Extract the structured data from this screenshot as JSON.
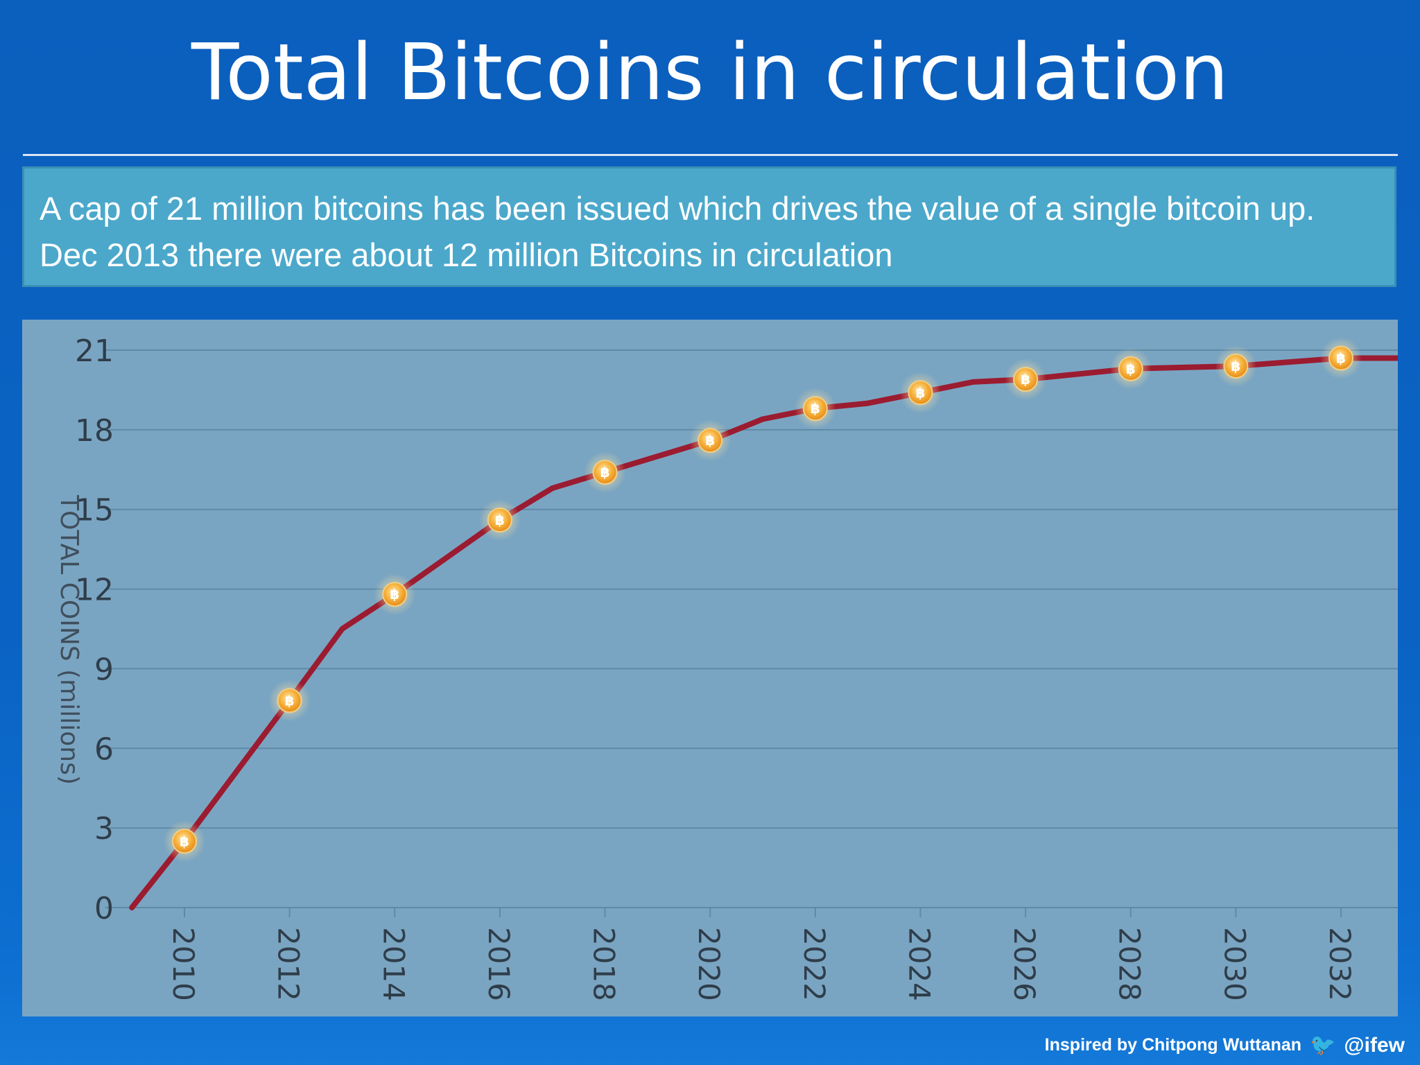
{
  "slide": {
    "title": "Total Bitcoins in circulation",
    "description": "A cap of 21 million bitcoins has been issued which drives the value of a single bitcoin up. Dec 2013 there were about 12 million Bitcoins in circulation"
  },
  "credit": {
    "text": "Inspired by Chitpong Wuttanan",
    "handle": "@ifew",
    "icon": "twitter-bird-icon"
  },
  "chart_data": {
    "type": "line",
    "title": "",
    "xlabel": "",
    "ylabel": "TOTAL COINS (millions)",
    "ylim": [
      0,
      21
    ],
    "xlim": [
      2009,
      2033
    ],
    "yticks": [
      "0",
      "3",
      "6",
      "9",
      "12",
      "15",
      "18",
      "21"
    ],
    "xticks": [
      "2010",
      "2012",
      "2014",
      "2016",
      "2018",
      "2020",
      "2022",
      "2024",
      "2026",
      "2028",
      "2030",
      "2032"
    ],
    "grid": true,
    "marker": "bitcoin-coin-icon",
    "line_color": "#9b1b30",
    "marker_color": "#f7a531",
    "series": [
      {
        "values": [
          {
            "x": 2009,
            "y": 0
          },
          {
            "x": 2010,
            "y": 2.5
          },
          {
            "x": 2012,
            "y": 7.8
          },
          {
            "x": 2013,
            "y": 10.5
          },
          {
            "x": 2014,
            "y": 11.8
          },
          {
            "x": 2016,
            "y": 14.6
          },
          {
            "x": 2017,
            "y": 15.8
          },
          {
            "x": 2018,
            "y": 16.4
          },
          {
            "x": 2020,
            "y": 17.6
          },
          {
            "x": 2021,
            "y": 18.4
          },
          {
            "x": 2022,
            "y": 18.8
          },
          {
            "x": 2023,
            "y": 19.0
          },
          {
            "x": 2024,
            "y": 19.4
          },
          {
            "x": 2025,
            "y": 19.8
          },
          {
            "x": 2026,
            "y": 19.9
          },
          {
            "x": 2028,
            "y": 20.3
          },
          {
            "x": 2030,
            "y": 20.4
          },
          {
            "x": 2032,
            "y": 20.7
          },
          {
            "x": 2033,
            "y": 20.7
          }
        ],
        "marked_x": [
          2010,
          2012,
          2014,
          2016,
          2018,
          2020,
          2022,
          2024,
          2026,
          2028,
          2030,
          2032
        ]
      }
    ]
  }
}
